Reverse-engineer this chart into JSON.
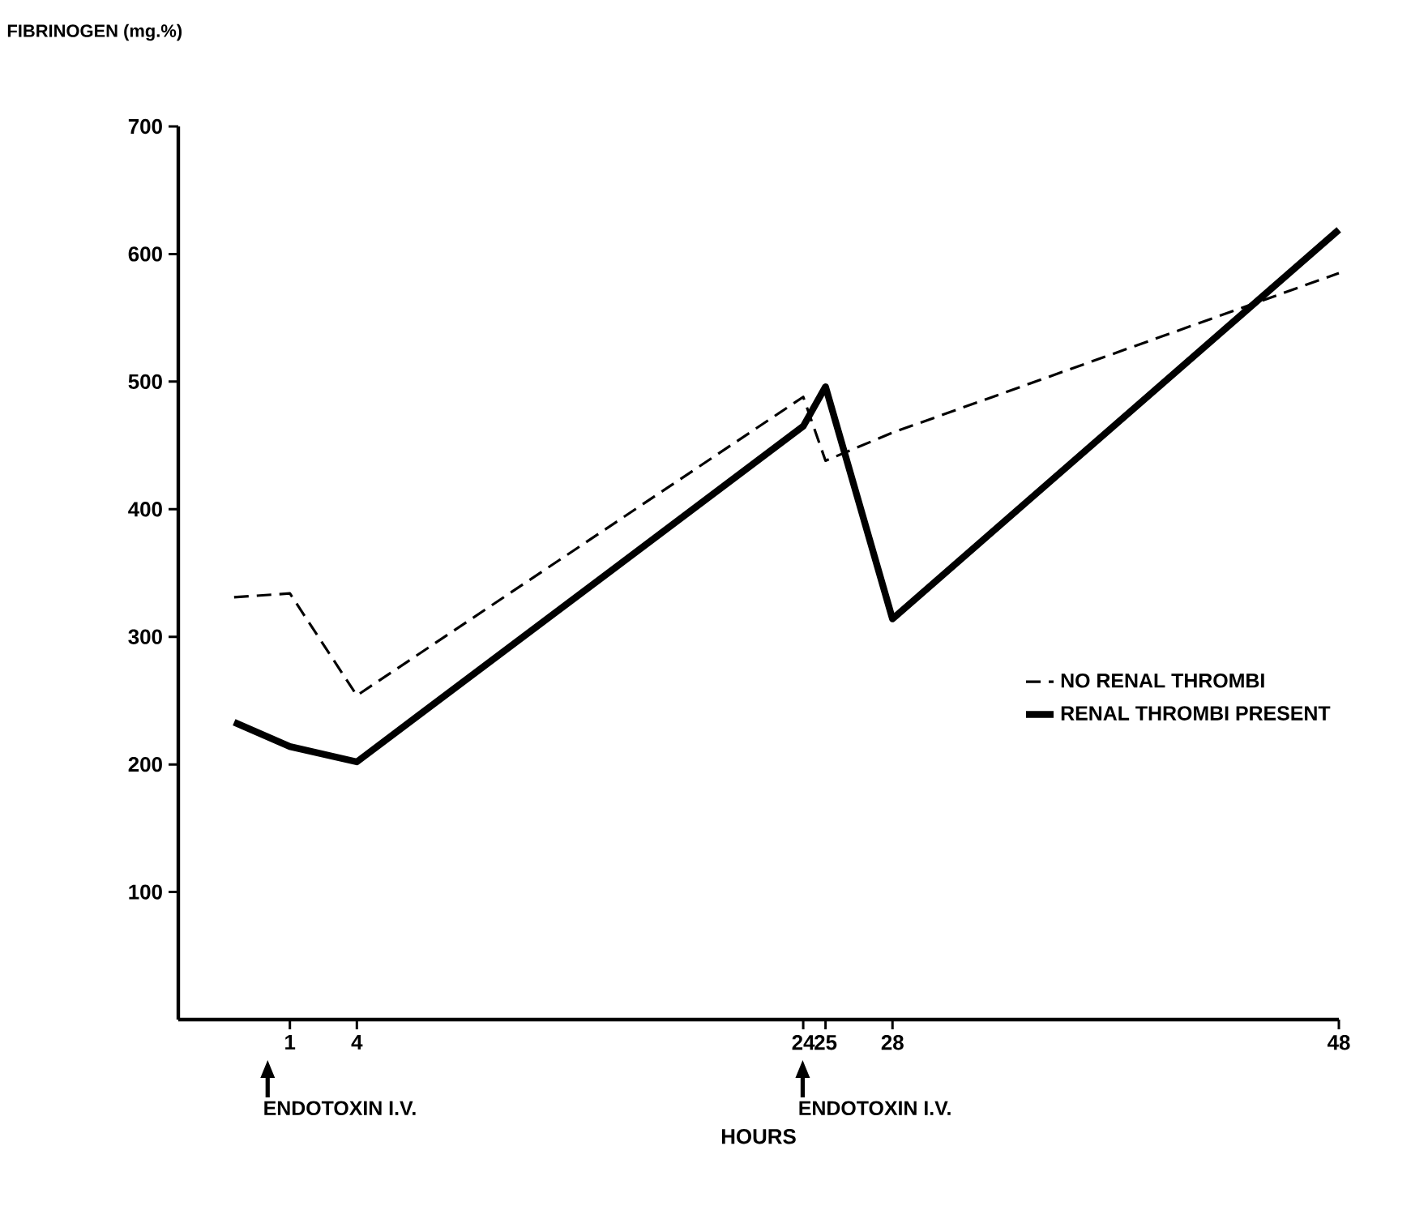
{
  "chart_data": {
    "type": "line",
    "ylabel": "FIBRINOGEN (mg.%)",
    "xlabel": "HOURS",
    "xlim": [
      -4,
      48
    ],
    "ylim": [
      0,
      700
    ],
    "xticks": [
      1,
      4,
      24,
      25,
      28,
      48
    ],
    "yticks": [
      100,
      200,
      300,
      400,
      500,
      600,
      700
    ],
    "series": [
      {
        "name": "NO RENAL THROMBI",
        "color": "#000000",
        "line_style": "dashed",
        "x": [
          -1.5,
          1,
          4,
          24,
          25,
          28,
          48
        ],
        "values": [
          331,
          334,
          254,
          488,
          438,
          460,
          585
        ]
      },
      {
        "name": "RENAL THROMBI PRESENT",
        "color": "#000000",
        "line_style": "solid",
        "x": [
          -1.5,
          1,
          4,
          24,
          25,
          28,
          48
        ],
        "values": [
          233,
          214,
          202,
          465,
          496,
          314,
          619
        ]
      }
    ],
    "annotations": [
      "ENDOTOXIN I.V.",
      "ENDOTOXIN I.V."
    ],
    "legend": "right",
    "marker": "none"
  }
}
